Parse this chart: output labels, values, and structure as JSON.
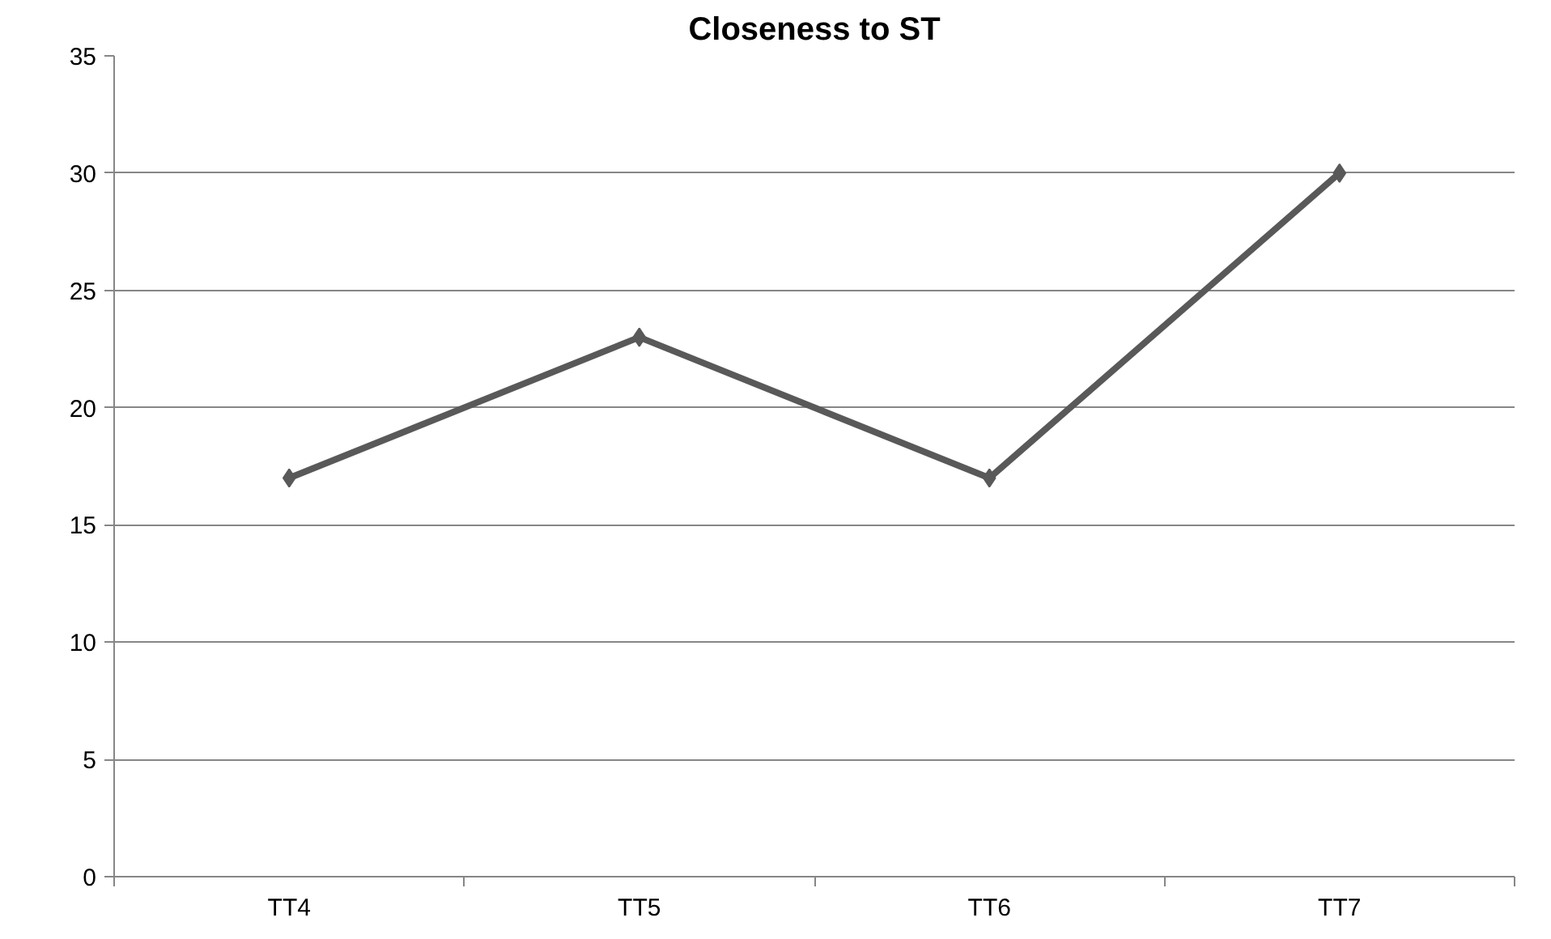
{
  "chart_data": {
    "type": "line",
    "title": "Closeness to ST",
    "categories": [
      "TT4",
      "TT5",
      "TT6",
      "TT7"
    ],
    "series": [
      {
        "color": "#595959",
        "values": [
          17,
          23,
          17,
          30
        ]
      }
    ],
    "ylim": [
      0,
      35
    ],
    "yticks": [
      0,
      5,
      10,
      15,
      20,
      25,
      30,
      35
    ],
    "grid": "y",
    "marker": "diamond",
    "line_style": "solid"
  }
}
